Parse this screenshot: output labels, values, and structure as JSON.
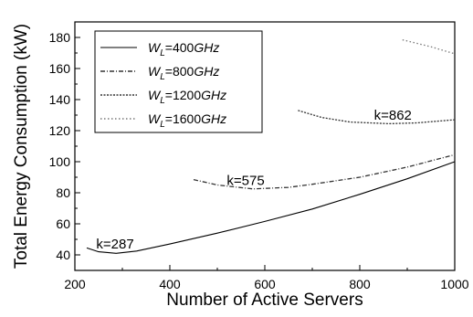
{
  "chart_data": {
    "type": "line",
    "xlabel": "Number of Active Servers",
    "ylabel": "Total Energy Consumption (kW)",
    "xlim": [
      200,
      1000
    ],
    "ylim": [
      30,
      190
    ],
    "xticks": [
      200,
      400,
      600,
      800,
      1000
    ],
    "yticks": [
      40,
      60,
      80,
      100,
      120,
      140,
      160,
      180
    ],
    "grid": false,
    "legend_position": "top-left",
    "series": [
      {
        "name": "W_L=400GHz",
        "legend": {
          "sym": "W",
          "sub": "L",
          "eq": "=400",
          "unit": "GHz"
        },
        "style": "solid",
        "color": "#000000",
        "x": [
          225,
          250,
          287,
          330,
          400,
          500,
          600,
          700,
          800,
          900,
          1000
        ],
        "y": [
          44.5,
          42,
          41,
          42.5,
          47,
          54,
          61.5,
          69.5,
          79,
          89,
          100
        ]
      },
      {
        "name": "W_L=800GHz",
        "legend": {
          "sym": "W",
          "sub": "L",
          "eq": "=800",
          "unit": "GHz"
        },
        "style": "dash-dot",
        "color": "#333333",
        "x": [
          450,
          500,
          575,
          650,
          700,
          800,
          900,
          1000
        ],
        "y": [
          88.5,
          85,
          82.5,
          83.5,
          85.5,
          90,
          96.5,
          104.5
        ]
      },
      {
        "name": "W_L=1200GHz",
        "legend": {
          "sym": "W",
          "sub": "L",
          "eq": "=1200",
          "unit": "GHz"
        },
        "style": "dotted",
        "color": "#333333",
        "x": [
          670,
          720,
          780,
          862,
          920,
          1000
        ],
        "y": [
          133,
          128.5,
          125.5,
          124.5,
          125,
          127
        ]
      },
      {
        "name": "W_L=1600GHz",
        "legend": {
          "sym": "W",
          "sub": "L",
          "eq": "=1600",
          "unit": "GHz"
        },
        "style": "dotted-sparse",
        "color": "#777777",
        "x": [
          890,
          950,
          1000
        ],
        "y": [
          178.5,
          174,
          169.5
        ]
      }
    ],
    "annotations": [
      {
        "text": "k=287",
        "x": 245,
        "y": 44
      },
      {
        "text": "k=575",
        "x": 520,
        "y": 85
      },
      {
        "text": "k=862",
        "x": 830,
        "y": 127
      }
    ]
  }
}
